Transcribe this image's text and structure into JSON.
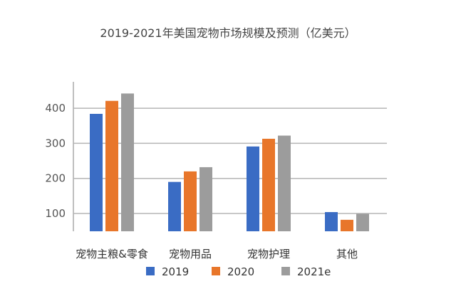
{
  "chart_data": {
    "type": "bar",
    "title": "2019-2021年美国宠物市场规模及预测（亿美元）",
    "xlabel": "",
    "ylabel": "",
    "categories": [
      "宠物主粮&零食",
      "宠物用品",
      "宠物护理",
      "其他"
    ],
    "series": [
      {
        "name": "2019",
        "color": "#3a6cc4",
        "values": [
          384,
          190,
          291,
          104
        ]
      },
      {
        "name": "2020",
        "color": "#e8762a",
        "values": [
          421,
          220,
          313,
          82
        ]
      },
      {
        "name": "2021e",
        "color": "#9c9c9c",
        "values": [
          442,
          232,
          322,
          99
        ]
      }
    ],
    "yticks": [
      100,
      200,
      300,
      400
    ],
    "ylim": [
      50,
      475
    ],
    "grid": true,
    "legend": "bottom"
  }
}
